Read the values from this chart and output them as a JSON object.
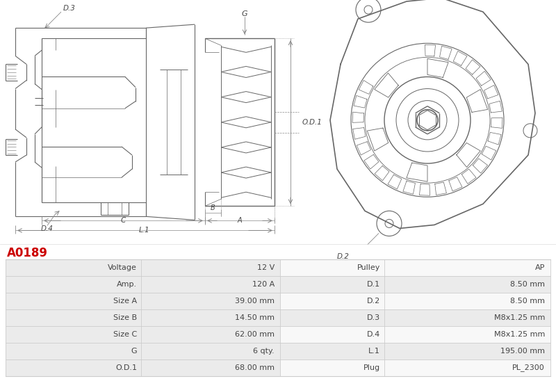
{
  "title": "A0189",
  "title_color": "#cc0000",
  "bg_color": "#ffffff",
  "table_rows": [
    [
      "Voltage",
      "12 V",
      "Pulley",
      "AP"
    ],
    [
      "Amp.",
      "120 A",
      "D.1",
      "8.50 mm"
    ],
    [
      "Size A",
      "39.00 mm",
      "D.2",
      "8.50 mm"
    ],
    [
      "Size B",
      "14.50 mm",
      "D.3",
      "M8x1.25 mm"
    ],
    [
      "Size C",
      "62.00 mm",
      "D.4",
      "M8x1.25 mm"
    ],
    [
      "G",
      "6 qty.",
      "L.1",
      "195.00 mm"
    ],
    [
      "O.D.1",
      "68.00 mm",
      "Plug",
      "PL_2300"
    ]
  ],
  "table_row_bg_odd": "#ebebeb",
  "table_row_bg_even": "#f8f8f8",
  "table_line_color": "#cccccc",
  "text_color": "#444444",
  "line_color": "#666666",
  "dim_color": "#888888",
  "font_size_table": 8.0,
  "font_size_title": 12
}
